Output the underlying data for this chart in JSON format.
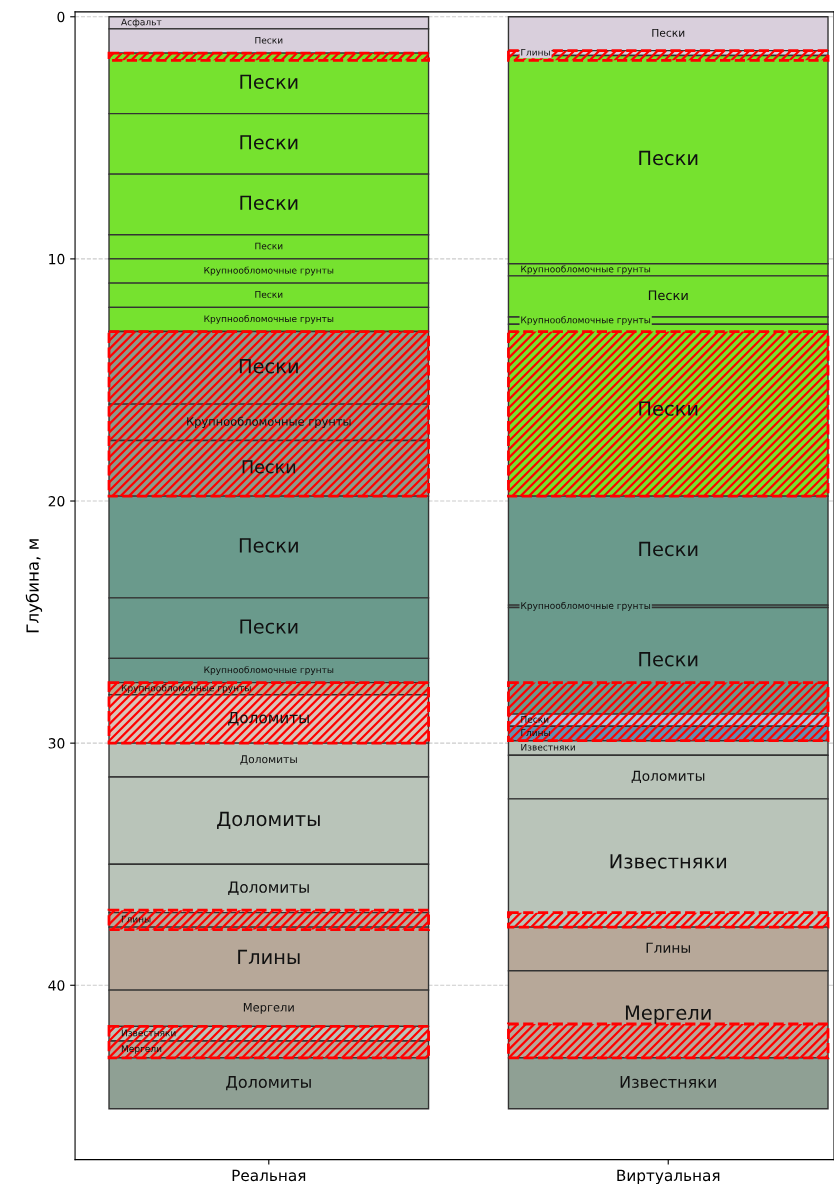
{
  "chart_data": {
    "type": "bar",
    "categories": [
      "Реальная",
      "Виртуальная"
    ],
    "ylabel": "Глубина, м",
    "ylim": [
      47.2,
      -0.2
    ],
    "yticks": [
      0,
      10,
      20,
      30,
      40
    ],
    "grid": "y",
    "series": [
      {
        "color": "#d9cfdc",
        "base": [
          0,
          null
        ],
        "values": [
          0.5,
          null
        ],
        "value_labels": [
          "Асфальт",
          null
        ]
      },
      {
        "color": "#d9cfdc",
        "base": [
          0.5,
          null
        ],
        "values": [
          1.0,
          null
        ],
        "value_labels": [
          "Пески",
          null
        ]
      },
      {
        "color": "#76e22f",
        "base": [
          1.5,
          null
        ],
        "values": [
          2.5,
          null
        ],
        "value_labels": [
          "Пески",
          null
        ]
      },
      {
        "color": "#76e22f",
        "base": [
          4.0,
          null
        ],
        "values": [
          2.5,
          null
        ],
        "value_labels": [
          "Пески",
          null
        ]
      },
      {
        "color": "#76e22f",
        "base": [
          6.5,
          null
        ],
        "values": [
          2.5,
          null
        ],
        "value_labels": [
          "Пески",
          null
        ]
      },
      {
        "color": "#76e22f",
        "base": [
          9.0,
          null
        ],
        "values": [
          1.0,
          null
        ],
        "value_labels": [
          "Пески",
          null
        ]
      },
      {
        "color": "#76e22f",
        "base": [
          10.0,
          null
        ],
        "values": [
          1.0,
          null
        ],
        "value_labels": [
          "Крупнообломочные грунты",
          null
        ]
      },
      {
        "color": "#76e22f",
        "base": [
          11.0,
          null
        ],
        "values": [
          1.0,
          null
        ],
        "value_labels": [
          "Пески",
          null
        ]
      },
      {
        "color": "#76e22f",
        "base": [
          12.0,
          null
        ],
        "values": [
          1.0,
          null
        ],
        "value_labels": [
          "Крупнообломочные грунты",
          null
        ]
      },
      {
        "color": "#8c9a8a",
        "base": [
          13.0,
          null
        ],
        "values": [
          3.0,
          null
        ],
        "value_labels": [
          "Пески",
          null
        ]
      },
      {
        "color": "#8c9a8a",
        "base": [
          16.0,
          null
        ],
        "values": [
          1.5,
          null
        ],
        "value_labels": [
          "Крупнообломочные грунты",
          null
        ]
      },
      {
        "color": "#8c9a8a",
        "base": [
          17.5,
          null
        ],
        "values": [
          2.3,
          null
        ],
        "value_labels": [
          "Пески",
          null
        ]
      },
      {
        "color": "#6a9a8c",
        "base": [
          19.8,
          null
        ],
        "values": [
          4.2,
          null
        ],
        "value_labels": [
          "Пески",
          null
        ]
      },
      {
        "color": "#6a9a8c",
        "base": [
          24.0,
          null
        ],
        "values": [
          2.5,
          null
        ],
        "value_labels": [
          "Пески",
          null
        ]
      },
      {
        "color": "#6a9a8c",
        "base": [
          26.5,
          null
        ],
        "values": [
          1.0,
          null
        ],
        "value_labels": [
          "Крупнообломочные грунты",
          null
        ]
      },
      {
        "color": "#b9a98f",
        "base": [
          27.5,
          null
        ],
        "values": [
          0.5,
          null
        ],
        "value_labels": [
          "Крупнообломочные грунты",
          null
        ]
      },
      {
        "color": "#d9c4b8",
        "base": [
          28.0,
          null
        ],
        "values": [
          2.0,
          null
        ],
        "value_labels": [
          "Доломиты",
          null
        ]
      },
      {
        "color": "#b9c4b9",
        "base": [
          30.0,
          null
        ],
        "values": [
          1.4,
          null
        ],
        "value_labels": [
          "Доломиты",
          null
        ]
      },
      {
        "color": "#b9c4b9",
        "base": [
          31.4,
          null
        ],
        "values": [
          3.6,
          null
        ],
        "value_labels": [
          "Доломиты",
          null
        ]
      },
      {
        "color": "#b9c4b9",
        "base": [
          35.0,
          null
        ],
        "values": [
          2.0,
          null
        ],
        "value_labels": [
          "Доломиты",
          null
        ]
      },
      {
        "color": "#b7a899",
        "base": [
          37.0,
          null
        ],
        "values": [
          0.6,
          null
        ],
        "value_labels": [
          "Глины",
          null
        ]
      },
      {
        "color": "#b7a899",
        "base": [
          37.6,
          null
        ],
        "values": [
          2.6,
          null
        ],
        "value_labels": [
          "Глины",
          null
        ]
      },
      {
        "color": "#b7a899",
        "base": [
          40.2,
          null
        ],
        "values": [
          1.5,
          null
        ],
        "value_labels": [
          "Мергели",
          null
        ]
      },
      {
        "color": "#b9c4b9",
        "base": [
          41.7,
          null
        ],
        "values": [
          0.6,
          null
        ],
        "value_labels": [
          "Известняки",
          null
        ]
      },
      {
        "color": "#b7a899",
        "base": [
          42.3,
          null
        ],
        "values": [
          0.7,
          null
        ],
        "value_labels": [
          "Мергели",
          null
        ]
      },
      {
        "color": "#8fa094",
        "base": [
          43.0,
          null
        ],
        "values": [
          2.1,
          null
        ],
        "value_labels": [
          "Доломиты",
          null
        ]
      },
      {
        "color": "#d9cfdc",
        "base": [
          null,
          0
        ],
        "values": [
          null,
          1.4
        ],
        "value_labels": [
          null,
          "Пески"
        ]
      },
      {
        "color": "#d9cfdc",
        "base": [
          null,
          1.4
        ],
        "values": [
          null,
          0.2
        ],
        "value_labels": [
          null,
          "Глины"
        ]
      },
      {
        "color": "#76e22f",
        "base": [
          null,
          1.6
        ],
        "values": [
          null,
          8.6
        ],
        "value_labels": [
          null,
          "Пески"
        ]
      },
      {
        "color": "#76e22f",
        "base": [
          null,
          10.2
        ],
        "values": [
          null,
          0.5
        ],
        "value_labels": [
          null,
          "Крупнообломочные грунты"
        ]
      },
      {
        "color": "#76e22f",
        "base": [
          null,
          10.7
        ],
        "values": [
          null,
          1.7
        ],
        "value_labels": [
          null,
          "Пески"
        ]
      },
      {
        "color": "#76e22f",
        "base": [
          null,
          12.4
        ],
        "values": [
          null,
          0.3
        ],
        "value_labels": [
          null,
          "Крупнообломочные грунты"
        ]
      },
      {
        "color": "#76e22f",
        "base": [
          null,
          12.7
        ],
        "values": [
          null,
          7.1
        ],
        "value_labels": [
          null,
          "Пески"
        ]
      },
      {
        "color": "#6a9a8c",
        "base": [
          null,
          19.8
        ],
        "values": [
          null,
          4.5
        ],
        "value_labels": [
          null,
          "Пески"
        ]
      },
      {
        "color": "#6a9a8c",
        "base": [
          null,
          24.3
        ],
        "values": [
          null,
          0.1
        ],
        "value_labels": [
          null,
          "Крупнообломочные грунты"
        ]
      },
      {
        "color": "#6a9a8c",
        "base": [
          null,
          24.4
        ],
        "values": [
          null,
          4.4
        ],
        "value_labels": [
          null,
          "Пески"
        ]
      },
      {
        "color": "#a9c4dc",
        "base": [
          null,
          28.8
        ],
        "values": [
          null,
          0.5
        ],
        "value_labels": [
          null,
          "Пески"
        ]
      },
      {
        "color": "#5f8fb0",
        "base": [
          null,
          29.3
        ],
        "values": [
          null,
          0.6
        ],
        "value_labels": [
          null,
          "Глины"
        ]
      },
      {
        "color": "#b9c4b9",
        "base": [
          null,
          29.9
        ],
        "values": [
          null,
          0.6
        ],
        "value_labels": [
          null,
          "Известняки"
        ]
      },
      {
        "color": "#b9c4b9",
        "base": [
          null,
          30.5
        ],
        "values": [
          null,
          1.8
        ],
        "value_labels": [
          null,
          "Доломиты"
        ]
      },
      {
        "color": "#b9c4b9",
        "base": [
          null,
          32.3
        ],
        "values": [
          null,
          5.3
        ],
        "value_labels": [
          null,
          "Известняки"
        ]
      },
      {
        "color": "#b7a899",
        "base": [
          null,
          37.6
        ],
        "values": [
          null,
          1.8
        ],
        "value_labels": [
          null,
          "Глины"
        ]
      },
      {
        "color": "#b7a899",
        "base": [
          null,
          39.4
        ],
        "values": [
          null,
          3.6
        ],
        "value_labels": [
          null,
          "Мергели"
        ]
      },
      {
        "color": "#8fa094",
        "base": [
          null,
          43.0
        ],
        "values": [
          null,
          2.1
        ],
        "value_labels": [
          null,
          "Известняки"
        ]
      },
      {
        "color": "#ff0000",
        "line_style": "dashed",
        "base": [
          1.5,
          1.4
        ],
        "values": [
          0.3,
          0.4
        ]
      },
      {
        "color": "#ff0000",
        "line_style": "dashed",
        "base": [
          13.0,
          13.0
        ],
        "values": [
          6.8,
          6.8
        ]
      },
      {
        "color": "#ff0000",
        "line_style": "dashed",
        "base": [
          27.5,
          27.5
        ],
        "values": [
          2.5,
          2.4
        ]
      },
      {
        "color": "#ff0000",
        "line_style": "dashed",
        "base": [
          36.9,
          37.0
        ],
        "values": [
          0.8,
          0.6
        ]
      },
      {
        "color": "#ff0000",
        "line_style": "dashed",
        "base": [
          41.7,
          41.6
        ],
        "values": [
          1.3,
          1.4
        ]
      }
    ]
  }
}
